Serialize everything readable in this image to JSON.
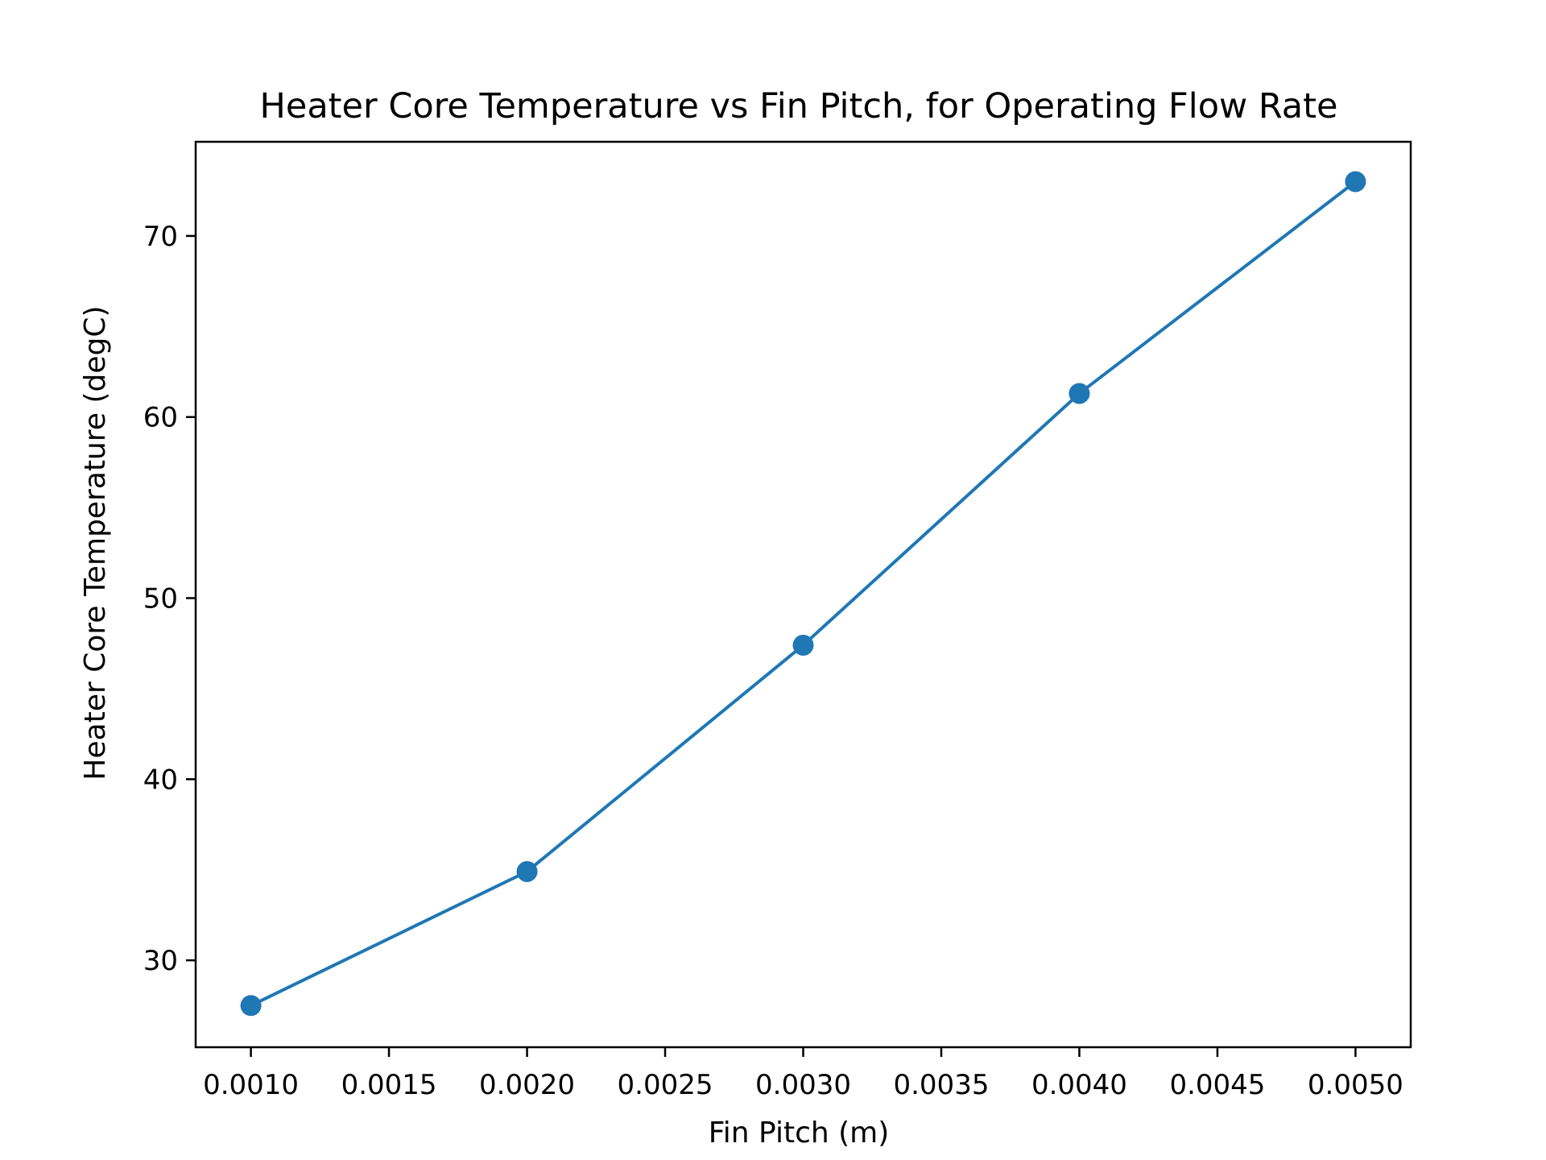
{
  "chart_data": {
    "type": "line",
    "title": "Heater Core Temperature vs Fin Pitch, for Operating Flow Rate",
    "xlabel": "Fin Pitch (m)",
    "ylabel": "Heater Core Temperature (degC)",
    "x": [
      0.001,
      0.002,
      0.003,
      0.004,
      0.005
    ],
    "series": [
      {
        "name": "",
        "values": [
          27.5,
          34.9,
          47.4,
          61.3,
          73.0
        ]
      }
    ],
    "xlim": [
      0.0008,
      0.0052
    ],
    "ylim": [
      25.2,
      75.2
    ],
    "xticks": [
      0.001,
      0.0015,
      0.002,
      0.0025,
      0.003,
      0.0035,
      0.004,
      0.0045,
      0.005
    ],
    "xtick_labels": [
      "0.0010",
      "0.0015",
      "0.0020",
      "0.0025",
      "0.0030",
      "0.0035",
      "0.0040",
      "0.0045",
      "0.0050"
    ],
    "yticks": [
      30,
      40,
      50,
      60,
      70
    ],
    "ytick_labels": [
      "30",
      "40",
      "50",
      "60",
      "70"
    ],
    "grid": false,
    "marker": "circle",
    "colors": {
      "series": "#1f77b4",
      "axes": "#000000",
      "background": "#ffffff"
    }
  }
}
